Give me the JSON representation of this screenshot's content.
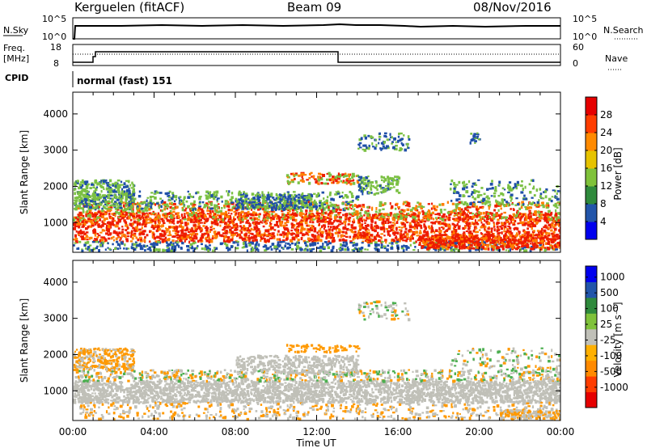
{
  "header": {
    "station": "Kerguelen (fitACF)",
    "beam": "Beam 09",
    "date": "08/Nov/2016"
  },
  "panels": {
    "nsky": {
      "left_label": "N.Sky",
      "left_ticks": [
        "10^5",
        "10^0"
      ],
      "right_ticks": [
        "10^5",
        "10^0"
      ],
      "right_label": "N.Search"
    },
    "freq": {
      "left_label_1": "Freq.",
      "left_label_2": "[MHz]",
      "left_ticks": [
        "18",
        "8"
      ],
      "right_ticks": [
        "60",
        "0"
      ],
      "right_label": "Nave"
    },
    "cpid": {
      "label": "CPID",
      "mode": "normal (fast) 151"
    }
  },
  "chart_data": [
    {
      "type": "heatmap",
      "title": "",
      "xlabel": "",
      "ylabel": "Slant Range [km]",
      "x_ticks": [
        "00:00",
        "04:00",
        "08:00",
        "12:00",
        "16:00",
        "20:00",
        "00:00"
      ],
      "xlim_hours": [
        0,
        24
      ],
      "ylim_km": [
        180,
        4600
      ],
      "y_ticks": [
        1000,
        2000,
        3000,
        4000
      ],
      "colorbar_label": "Power [dB]",
      "colorbar_ticks": [
        "28",
        "24",
        "20",
        "16",
        "12",
        "8",
        "4"
      ],
      "colorbar_colors": [
        "#0000ee",
        "#2255aa",
        "#2f8a3c",
        "#7fc23a",
        "#e6c300",
        "#ff8a00",
        "#ff3d00",
        "#e60000"
      ],
      "colors": {
        "high": "#ee1c00",
        "mid": "#ff7f00",
        "low": "#7bc043",
        "weak": "#1f4fa8"
      }
    },
    {
      "type": "heatmap",
      "title": "",
      "xlabel": "Time UT",
      "ylabel": "Slant Range [km]",
      "x_ticks": [
        "00:00",
        "04:00",
        "08:00",
        "12:00",
        "16:00",
        "20:00",
        "00:00"
      ],
      "xlim_hours": [
        0,
        24
      ],
      "ylim_km": [
        180,
        4600
      ],
      "y_ticks": [
        1000,
        2000,
        3000,
        4000
      ],
      "colorbar_label": "Velocity [m s⁻¹]",
      "colorbar_ticks": [
        "1000",
        "500",
        "100",
        "25",
        "-25",
        "-100",
        "-500",
        "-1000"
      ],
      "colorbar_colors": [
        "#e60000",
        "#ff3d00",
        "#ff8a00",
        "#ffb000",
        "#c0c0b8",
        "#7fc23a",
        "#2f8a3c",
        "#2255aa",
        "#0000ee"
      ],
      "colors": {
        "ground_scatter": "#c0c0b8",
        "away": "#ff9900",
        "toward": "#4caf50"
      }
    }
  ]
}
